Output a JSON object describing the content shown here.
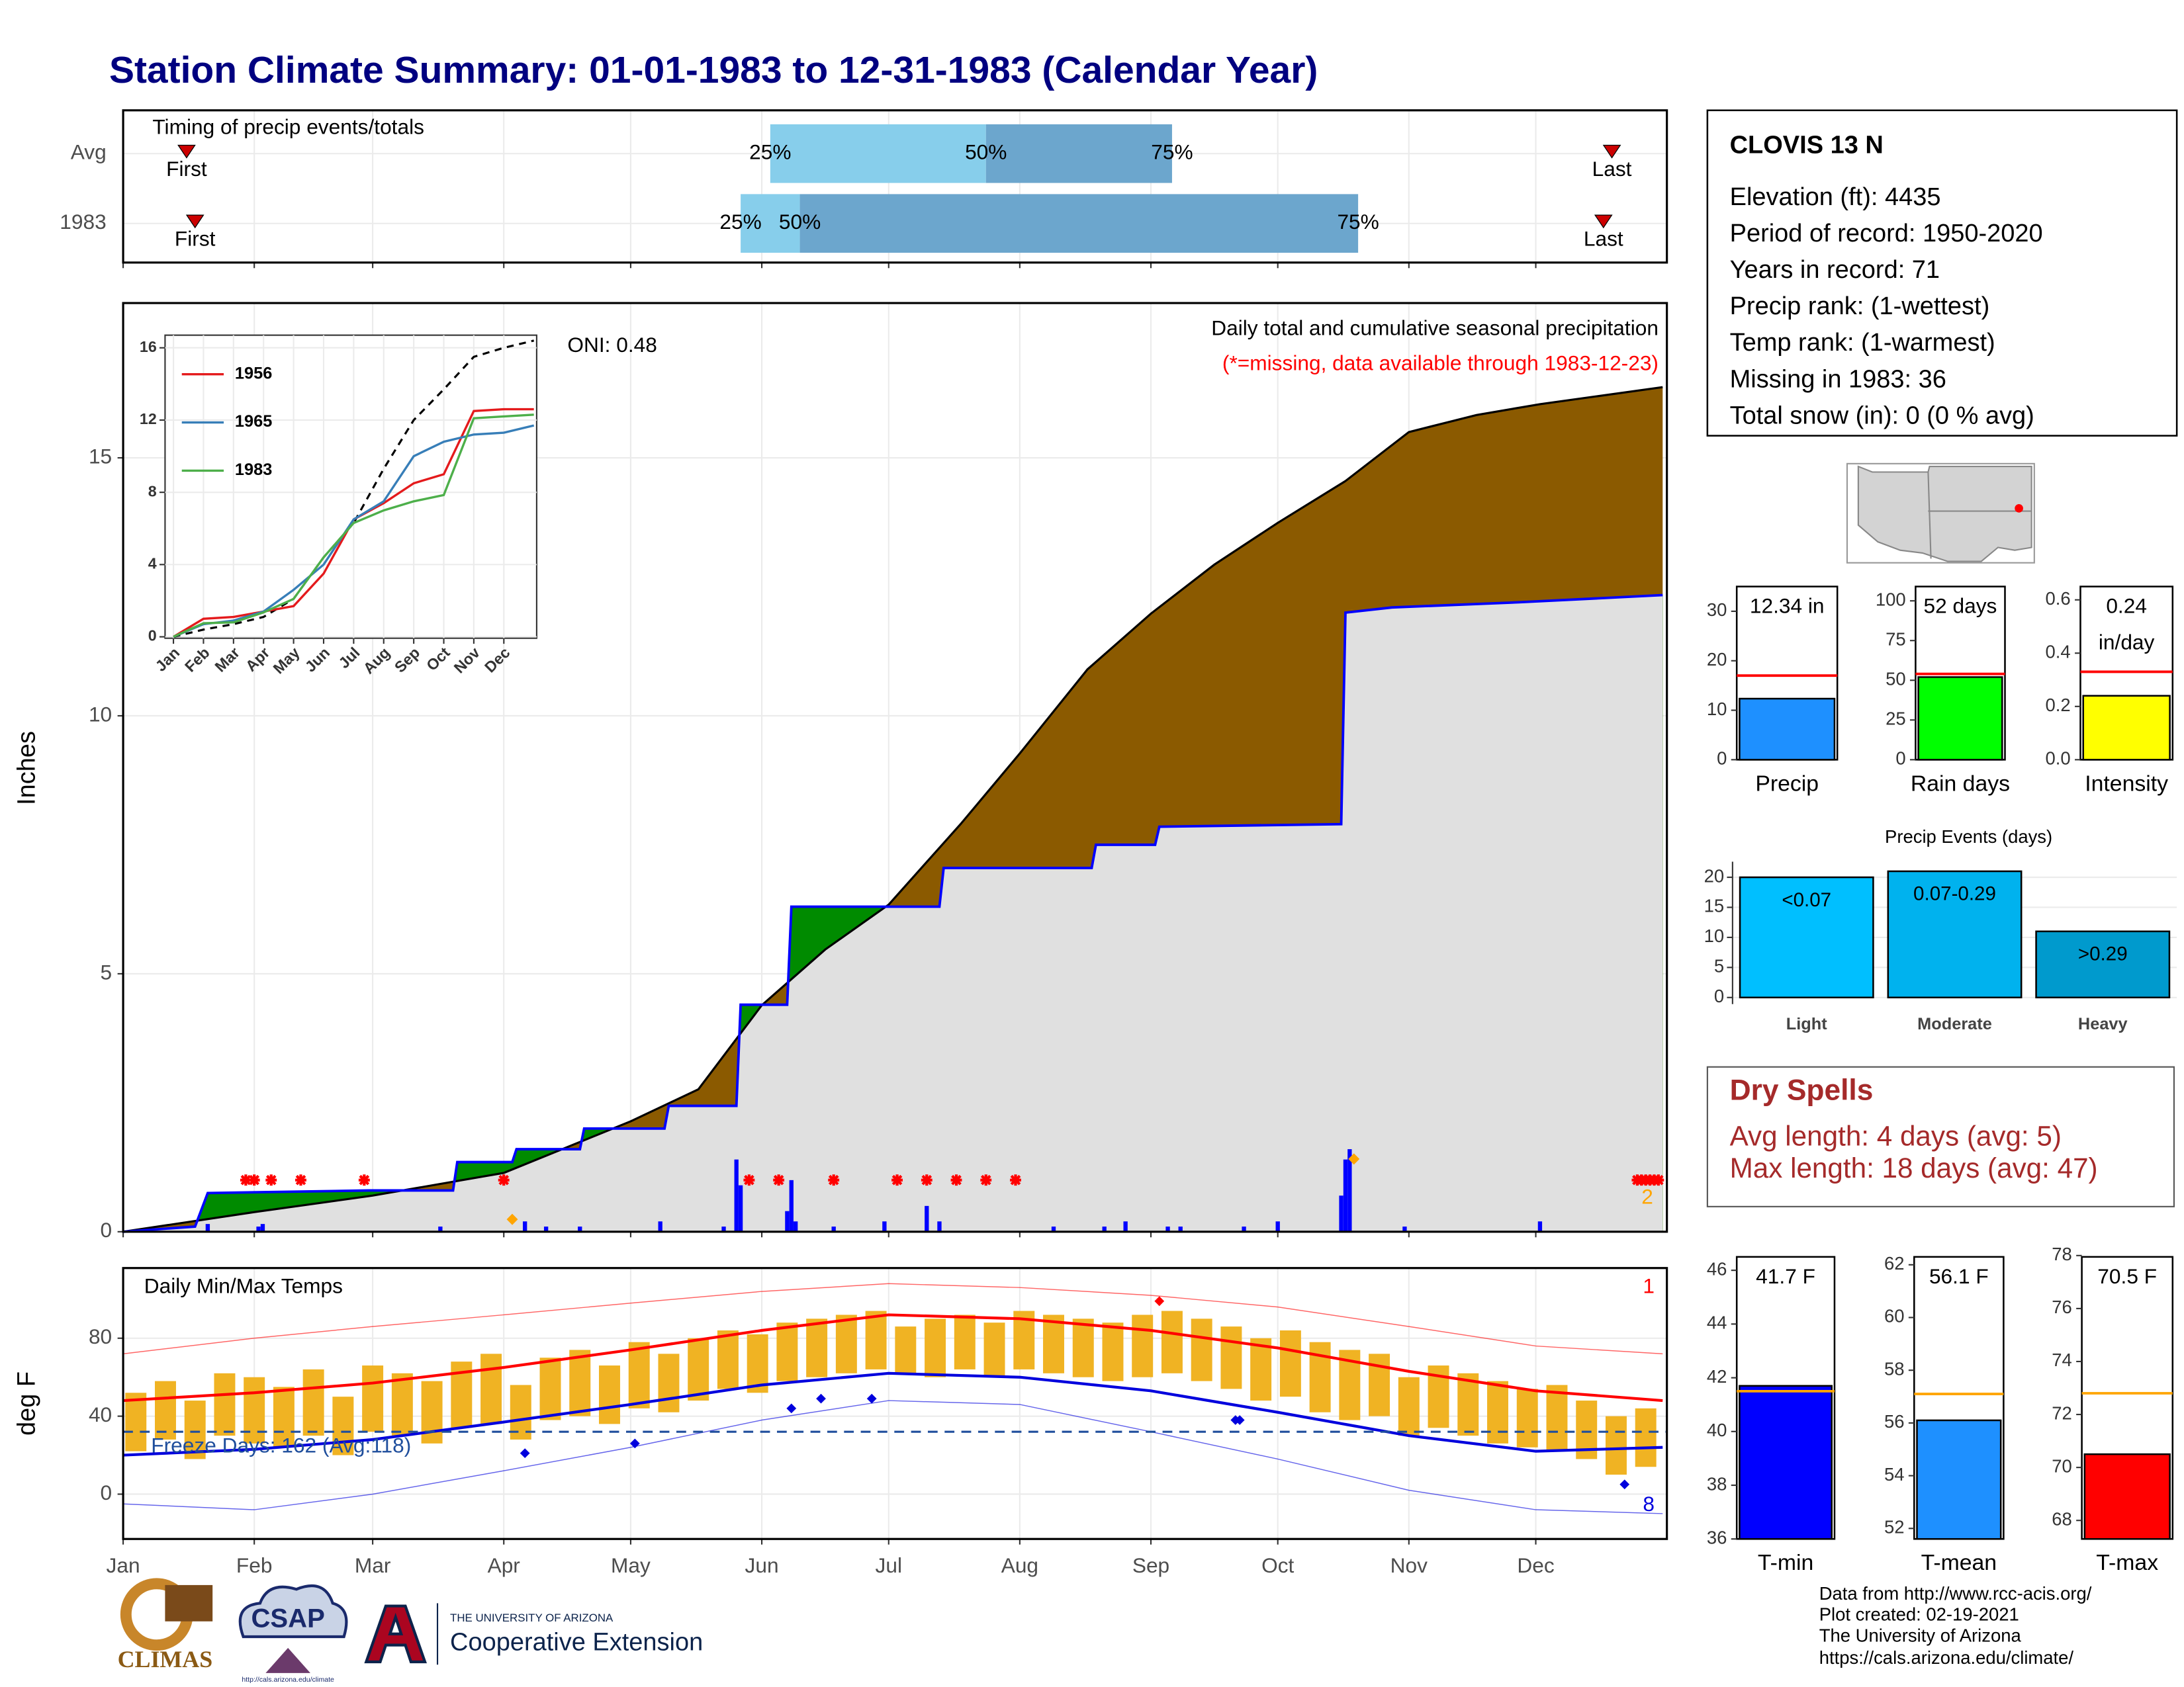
{
  "title": "Station Climate Summary: 01-01-1983 to 12-31-1983 (Calendar Year)",
  "station": {
    "name": "CLOVIS 13 N",
    "lines": [
      "Elevation (ft): 4435",
      "Period of record: 1950-2020",
      "Years in record: 71",
      "Precip rank:  (1-wettest)",
      "Temp rank:  (1-warmest)",
      "Missing in 1983: 36",
      "Total snow (in): 0 (0 % avg)"
    ]
  },
  "dry_spells": {
    "title": "Dry Spells",
    "lines": [
      "Avg length: 4 days (avg: 5)",
      "Max length: 18 days (avg: 47)"
    ]
  },
  "footer": [
    "Data from http://www.rcc-acis.org/",
    "Plot created: 02-19-2021",
    "The University of Arizona",
    "https://cals.arizona.edu/climate/"
  ],
  "logos": {
    "climas": "CLIMAS",
    "csap": "CSAP",
    "csap_url": "http://cals.arizona.edu/climate",
    "university": "THE UNIVERSITY OF ARIZONA",
    "extension": "Cooperative Extension"
  },
  "chart_data": [
    {
      "type": "timing",
      "title": "Timing of precip events/totals",
      "xlim": [
        0,
        365
      ],
      "xticks": [
        0,
        31,
        59,
        90,
        120,
        151,
        181,
        212,
        243,
        273,
        304,
        334
      ],
      "rows": [
        {
          "label": "Avg",
          "first": 15,
          "q25": 153,
          "q50": 204,
          "q75": 248,
          "last": 352
        },
        {
          "label": "1983",
          "first": 17,
          "q25": 146,
          "q50": 160,
          "q75": 292,
          "last": 350
        }
      ],
      "quantile_labels": [
        "25%",
        "50%",
        "75%"
      ],
      "first_label": "First",
      "last_label": "Last",
      "colors": [
        "#87ceeb",
        "#6ca6cd"
      ],
      "marker_color": "#cc0000"
    },
    {
      "type": "cumulative",
      "title": "Daily total and cumulative seasonal precipitation",
      "subtitle": "(*=missing, data available through 1983-12-23)",
      "annotation": "ONI: 0.48",
      "ylabel": "Inches",
      "xlim": [
        0,
        365
      ],
      "ylim": [
        0,
        18
      ],
      "yticks": [
        0,
        5,
        10,
        15
      ],
      "xticks": [
        0,
        31,
        59,
        90,
        120,
        151,
        181,
        212,
        243,
        273,
        304,
        334
      ],
      "series": [
        {
          "color": "#000000",
          "x": [
            0,
            31,
            59,
            90,
            120,
            136,
            151,
            166,
            181,
            198,
            212,
            228,
            243,
            258,
            273,
            289,
            304,
            320,
            335,
            364
          ],
          "values": [
            0,
            0.38,
            0.7,
            1.14,
            2.14,
            2.76,
            4.39,
            5.47,
            6.34,
            7.9,
            9.27,
            10.9,
            11.98,
            12.93,
            13.74,
            14.55,
            15.5,
            15.83,
            16.04,
            16.37
          ]
        },
        {
          "color": "#0000ff",
          "x": [
            0,
            17,
            20,
            58,
            78,
            79,
            92,
            93,
            108,
            109,
            128,
            129,
            145,
            146,
            157,
            158,
            193,
            194,
            229,
            230,
            244,
            245,
            288,
            289,
            300,
            330,
            364
          ],
          "values": [
            0,
            0.1,
            0.75,
            0.8,
            0.8,
            1.35,
            1.35,
            1.6,
            1.6,
            2.0,
            2.0,
            2.44,
            2.44,
            4.4,
            4.4,
            6.3,
            6.3,
            7.05,
            7.05,
            7.5,
            7.5,
            7.85,
            7.9,
            12.0,
            12.1,
            12.2,
            12.34
          ]
        }
      ],
      "deficit_color": "#8b5a00",
      "surplus_color": "#008b00",
      "base_color": "#e0e0e0",
      "daily": {
        "color": "#0000ff",
        "x": [
          20,
          32,
          33,
          75,
          95,
          100,
          108,
          127,
          142,
          145,
          146,
          157,
          158,
          159,
          168,
          180,
          190,
          193,
          220,
          232,
          237,
          247,
          250,
          265,
          273,
          288,
          289,
          290,
          303,
          335
        ],
        "values": [
          0.15,
          0.1,
          0.15,
          0.1,
          0.2,
          0.1,
          0.1,
          0.2,
          0.1,
          1.4,
          0.9,
          0.4,
          1.0,
          0.2,
          0.1,
          0.2,
          0.5,
          0.2,
          0.1,
          0.1,
          0.2,
          0.1,
          0.1,
          0.1,
          0.2,
          0.7,
          1.4,
          1.6,
          0.1,
          0.2
        ]
      },
      "missing": {
        "color": "#ff0000",
        "x": [
          29,
          31,
          35,
          42,
          57,
          90,
          148,
          155,
          168,
          183,
          190,
          197,
          204,
          211,
          358,
          359,
          360,
          361,
          362,
          363
        ]
      },
      "record_marks": {
        "color": "#ffa500",
        "x": [
          92,
          291
        ],
        "values": [
          0.24,
          1.41
        ]
      },
      "record_count": 2
    },
    {
      "type": "line",
      "xlim": [
        0,
        12
      ],
      "ylim": [
        0,
        16.7
      ],
      "yticks": [
        0,
        4,
        8,
        12,
        16
      ],
      "xticks": [
        {
          "value": 0,
          "label": "Jan"
        },
        {
          "value": 1,
          "label": "Feb"
        },
        {
          "value": 2,
          "label": "Mar"
        },
        {
          "value": 3,
          "label": "Apr"
        },
        {
          "value": 4,
          "label": "May"
        },
        {
          "value": 5,
          "label": "Jun"
        },
        {
          "value": 6,
          "label": "Jul"
        },
        {
          "value": 7,
          "label": "Aug"
        },
        {
          "value": 8,
          "label": "Sep"
        },
        {
          "value": 9,
          "label": "Oct"
        },
        {
          "value": 10,
          "label": "Nov"
        },
        {
          "value": 11,
          "label": "Dec"
        }
      ],
      "x": [
        0,
        1,
        2,
        3,
        4,
        5,
        6,
        7,
        8,
        9,
        10,
        11,
        12
      ],
      "average": {
        "color": "#000000",
        "values": [
          0,
          0.4,
          0.7,
          1.1,
          2.1,
          4.4,
          6.3,
          9.3,
          12.0,
          13.7,
          15.5,
          16.0,
          16.4
        ]
      },
      "series": [
        {
          "name": "1956",
          "color": "#e41a1c",
          "values": [
            0,
            1.0,
            1.1,
            1.4,
            1.7,
            3.5,
            6.5,
            7.4,
            8.5,
            9.0,
            12.5,
            12.6,
            12.6
          ]
        },
        {
          "name": "1965",
          "color": "#377eb8",
          "values": [
            0,
            0.7,
            0.9,
            1.4,
            2.6,
            4.0,
            6.5,
            7.5,
            10.0,
            10.8,
            11.2,
            11.3,
            11.7
          ]
        },
        {
          "name": "1983",
          "color": "#4daf4a",
          "values": [
            0,
            0.75,
            0.8,
            1.35,
            2.1,
            4.4,
            6.3,
            7.0,
            7.5,
            7.85,
            12.1,
            12.2,
            12.3
          ]
        }
      ]
    },
    {
      "type": "temperature",
      "title": "Daily Min/Max Temps",
      "ylabel": "deg F",
      "xlim": [
        0,
        365
      ],
      "ylim": [
        -23,
        116
      ],
      "yticks": [
        0,
        40,
        80
      ],
      "xticks": [
        {
          "value": 0,
          "label": "Jan"
        },
        {
          "value": 31,
          "label": "Feb"
        },
        {
          "value": 59,
          "label": "Mar"
        },
        {
          "value": 90,
          "label": "Apr"
        },
        {
          "value": 120,
          "label": "May"
        },
        {
          "value": 151,
          "label": "Jun"
        },
        {
          "value": 181,
          "label": "Jul"
        },
        {
          "value": 212,
          "label": "Aug"
        },
        {
          "value": 243,
          "label": "Sep"
        },
        {
          "value": 273,
          "label": "Oct"
        },
        {
          "value": 304,
          "label": "Nov"
        },
        {
          "value": 334,
          "label": "Dec"
        }
      ],
      "bars": {
        "color": "#f0b323",
        "x": [
          3,
          10,
          17,
          24,
          31,
          38,
          45,
          52,
          59,
          66,
          73,
          80,
          87,
          94,
          101,
          108,
          115,
          122,
          129,
          136,
          143,
          150,
          157,
          164,
          171,
          178,
          185,
          192,
          199,
          206,
          213,
          220,
          227,
          234,
          241,
          248,
          255,
          262,
          269,
          276,
          283,
          290,
          297,
          304,
          311,
          318,
          325,
          332,
          339,
          346,
          353,
          360
        ],
        "max": [
          52,
          58,
          48,
          62,
          60,
          55,
          64,
          50,
          66,
          62,
          58,
          68,
          72,
          56,
          70,
          74,
          66,
          78,
          72,
          80,
          84,
          82,
          88,
          90,
          92,
          94,
          86,
          90,
          92,
          88,
          94,
          92,
          90,
          88,
          92,
          94,
          90,
          86,
          80,
          84,
          78,
          74,
          72,
          60,
          66,
          62,
          58,
          54,
          56,
          48,
          40,
          44
        ],
        "min": [
          22,
          28,
          18,
          30,
          26,
          24,
          30,
          20,
          32,
          30,
          26,
          34,
          36,
          28,
          38,
          40,
          36,
          44,
          42,
          48,
          54,
          52,
          58,
          60,
          62,
          64,
          62,
          60,
          64,
          60,
          64,
          62,
          60,
          58,
          60,
          62,
          58,
          54,
          48,
          50,
          42,
          38,
          40,
          30,
          34,
          30,
          26,
          24,
          22,
          18,
          10,
          14
        ]
      },
      "normals": {
        "x": [
          0,
          31,
          59,
          90,
          120,
          151,
          181,
          212,
          243,
          273,
          304,
          334,
          364
        ],
        "max": [
          48,
          52,
          57,
          65,
          74,
          84,
          92,
          90,
          84,
          75,
          63,
          53,
          48
        ],
        "min": [
          20,
          23,
          28,
          37,
          46,
          56,
          62,
          60,
          53,
          42,
          30,
          22,
          24
        ],
        "record_max": [
          72,
          80,
          86,
          92,
          98,
          104,
          108,
          106,
          102,
          96,
          86,
          76,
          72
        ],
        "record_min": [
          -5,
          -8,
          0,
          12,
          24,
          38,
          48,
          46,
          32,
          18,
          2,
          -8,
          -10
        ]
      },
      "high_color": "#ff0000",
      "low_color": "#0000dd",
      "record_highs": {
        "x": [
          245
        ],
        "values": [
          99
        ]
      },
      "record_lows": {
        "x": [
          95,
          121,
          158,
          165,
          177,
          263,
          264,
          355
        ],
        "values": [
          21,
          26,
          44,
          49,
          49,
          38,
          38,
          5
        ]
      },
      "record_high_count": 1,
      "record_low_count": 8,
      "freeze_line": 32,
      "freeze_label": "Freeze Days: 162 (Avg:118)"
    },
    {
      "type": "gauge",
      "ylim": [
        0,
        35
      ],
      "yticks": [
        0,
        10,
        20,
        30
      ],
      "values": [
        12.34
      ],
      "value_labels": [
        "12.34 in"
      ],
      "average": 17,
      "avg_color": "#ff0000",
      "color": "#1e90ff",
      "xlabel": "Precip"
    },
    {
      "type": "gauge",
      "ylim": [
        0,
        109
      ],
      "yticks": [
        0,
        25,
        50,
        75,
        100
      ],
      "values": [
        52
      ],
      "value_labels": [
        "52 days"
      ],
      "average": 54,
      "avg_color": "#ff0000",
      "color": "#00ff00",
      "xlabel": "Rain days"
    },
    {
      "type": "gauge",
      "ylim": [
        0,
        0.65
      ],
      "yticks": [
        {
          "value": 0,
          "label": "0.0"
        },
        {
          "value": 0.2,
          "label": "0.2"
        },
        {
          "value": 0.4,
          "label": "0.4"
        },
        {
          "value": 0.6,
          "label": "0.6"
        }
      ],
      "values": [
        0.24
      ],
      "value_labels": [
        "0.24"
      ],
      "unit": "in/day",
      "average": 0.33,
      "avg_color": "#ff0000",
      "color": "#ffff00",
      "xlabel": "Intensity"
    },
    {
      "type": "bar",
      "title": "Precip Events (days)",
      "ylim": [
        -1.1,
        22.6
      ],
      "yticks": [
        0,
        5,
        10,
        15,
        20
      ],
      "categories": [
        "Light",
        "Moderate",
        "Heavy"
      ],
      "values": [
        20,
        21,
        11
      ],
      "bar_labels": [
        "<0.07",
        "0.07-0.29",
        ">0.29"
      ],
      "colors": [
        "#00bfff",
        "#00b2ee",
        "#009acd"
      ]
    },
    {
      "type": "gauge",
      "ylim": [
        36,
        46.5
      ],
      "yticks": [
        36,
        38,
        40,
        42,
        44,
        46
      ],
      "values": [
        41.7
      ],
      "value_labels": [
        "41.7 F"
      ],
      "average": 41.5,
      "avg_color": "#ffa500",
      "color": "#0000ff",
      "xlabel": "T-min"
    },
    {
      "type": "gauge",
      "ylim": [
        51.6,
        62.3
      ],
      "yticks": [
        52,
        54,
        56,
        58,
        60,
        62
      ],
      "values": [
        56.1
      ],
      "value_labels": [
        "56.1 F"
      ],
      "average": 57.1,
      "avg_color": "#ffa500",
      "color": "#1e90ff",
      "xlabel": "T-mean"
    },
    {
      "type": "gauge",
      "ylim": [
        67.3,
        77.95
      ],
      "yticks": [
        68,
        70,
        72,
        74,
        76,
        78
      ],
      "values": [
        70.5
      ],
      "value_labels": [
        "70.5 F"
      ],
      "average": 72.8,
      "avg_color": "#ffa500",
      "color": "#ff0000",
      "xlabel": "T-max"
    }
  ]
}
